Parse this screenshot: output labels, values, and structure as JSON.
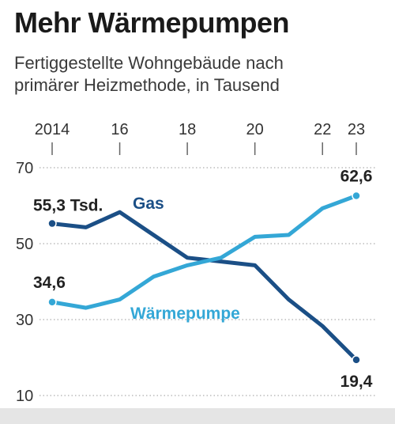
{
  "title": "Mehr Wärmepumpen",
  "subtitle": [
    "Fertiggestellte Wohngebäude nach",
    "primärer Heizmethode, in Tausend"
  ],
  "colors": {
    "gas": "#1b4f86",
    "heat_pump": "#34a7d6",
    "grid": "#999999",
    "footer": "#e5e5e5"
  },
  "chart_data": {
    "type": "line",
    "title": "Mehr Wärmepumpen",
    "subtitle": "Fertiggestellte Wohngebäude nach primärer Heizmethode, in Tausend",
    "x": [
      2014,
      2015,
      2016,
      2017,
      2018,
      2019,
      2020,
      2021,
      2022,
      2023
    ],
    "x_tick_values": [
      2014,
      2016,
      2018,
      2020,
      2022,
      2023
    ],
    "x_tick_labels": [
      "2014",
      "16",
      "18",
      "20",
      "22",
      "23"
    ],
    "y_ticks": [
      10,
      30,
      50,
      70
    ],
    "ylim": [
      10,
      70
    ],
    "xlabel": "",
    "ylabel": "",
    "grid": "horizontal dotted",
    "series": [
      {
        "name": "Gas",
        "key": "gas",
        "values": [
          55.3,
          54.3,
          58.3,
          52.3,
          46.3,
          45.3,
          44.3,
          35.3,
          28.3,
          19.4
        ]
      },
      {
        "name": "Wärmepumpe",
        "key": "heat_pump",
        "values": [
          34.6,
          33.1,
          35.3,
          41.3,
          44.3,
          46.3,
          51.8,
          52.3,
          59.3,
          62.6
        ]
      }
    ],
    "annotations": [
      {
        "series": "gas",
        "index": 0,
        "text": "55,3 Tsd."
      },
      {
        "series": "gas",
        "index": 9,
        "text": "19,4"
      },
      {
        "series": "heat_pump",
        "index": 0,
        "text": "34,6"
      },
      {
        "series": "heat_pump",
        "index": 9,
        "text": "62,6"
      }
    ]
  }
}
